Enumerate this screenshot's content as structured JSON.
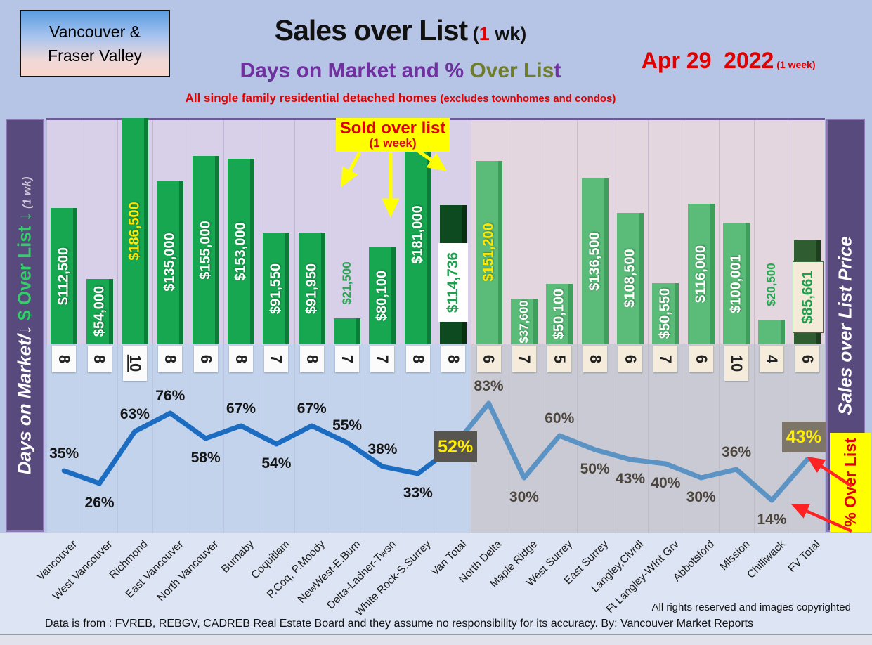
{
  "header": {
    "region_line1": "Vancouver &",
    "region_line2": "Fraser Valley",
    "title": "Sales over List",
    "title_paren_open": " (",
    "title_week_num": "1",
    "title_paren_close": " wk)",
    "subtitle_p1": "Days on Market and % ",
    "subtitle_green": "Over Lis",
    "subtitle_p2": "t",
    "tagline": "All single family residential detached homes ",
    "tagline_small": "(excludes townhomes and condos)",
    "date": "Apr 29  2022",
    "date_small": " (1 week)"
  },
  "sidebars": {
    "left_white": "Days on Market/",
    "left_arrow1": "↓",
    "left_green": " $ Over List ",
    "left_arrow2": "↓",
    "left_small": " (1 wk)",
    "right_label": "Sales over List Price",
    "pct_over_list": "% Over List"
  },
  "callout": {
    "line1": "Sold over list",
    "line2": "(1 week)"
  },
  "footer": {
    "rights": "All rights reserved and  images copyrighted",
    "source": "Data is from : FVREB, REBGV, CADREB Real Estate Board and they assume no responsibility for its accuracy. By: Vancouver Market Reports"
  },
  "chart_data": {
    "type": "bar+line",
    "title": "Sales over List (1 wk) - Days on Market and % Over List",
    "categories": [
      "Vancouver",
      "West Vancouver",
      "Richmond",
      "East Vancouver",
      "North Vancouver",
      "Burnaby",
      "Coquitlam",
      "P.Coq, P.Moody",
      "NewWest-E.Burn",
      "Delta-Ladner-Twsn",
      "White Rock-S.Surrey",
      "Van Total",
      "North Delta",
      "Maple Ridge",
      "West Surrey",
      "East Surrey",
      "Langley,Clvrdl",
      "Ft Langley-WInt Grv",
      "Abbotsford",
      "Mission",
      "Chilliwack",
      "FV Total"
    ],
    "series": [
      {
        "name": "Sold over list ($, 1 week)",
        "type": "bar",
        "values": [
          112500,
          54000,
          186500,
          135000,
          155000,
          153000,
          91550,
          91950,
          21500,
          80100,
          181000,
          114736,
          151200,
          37600,
          50100,
          136500,
          108500,
          50550,
          116000,
          100001,
          20500,
          85661
        ],
        "labels": [
          "$112,500",
          "$54,000",
          "$186,500",
          "$135,000",
          "$155,000",
          "$153,000",
          "$91,550",
          "$91,950",
          "$21,500",
          "$80,100",
          "$181,000",
          "$114,736",
          "$151,200",
          "$37,600",
          "$50,100",
          "$136,500",
          "$108,500",
          "$50,550",
          "$116,000",
          "$100,001",
          "$20,500",
          "$85,661"
        ],
        "label_style": [
          "white",
          "white",
          "yellow",
          "white",
          "white",
          "white",
          "white",
          "white",
          "green-above",
          "white",
          "white",
          "box-white",
          "yellow",
          "white-small",
          "white",
          "white",
          "white",
          "white",
          "white",
          "white",
          "green-above",
          "box-beige"
        ],
        "bar_style": [
          "van",
          "van",
          "van",
          "van",
          "van",
          "van",
          "van",
          "van",
          "van",
          "van",
          "van",
          "van-total",
          "fv",
          "fv",
          "fv",
          "fv",
          "fv",
          "fv",
          "fv",
          "fv",
          "fv",
          "fv-total"
        ]
      },
      {
        "name": "Days on Market",
        "type": "bar-callout-row",
        "values": [
          8,
          8,
          10,
          8,
          6,
          8,
          7,
          8,
          7,
          7,
          8,
          8,
          6,
          7,
          5,
          8,
          6,
          7,
          6,
          10,
          4,
          6
        ],
        "box_style": [
          "white",
          "white",
          "white",
          "white",
          "white",
          "white",
          "white",
          "white",
          "white",
          "white",
          "white",
          "white",
          "beige",
          "beige",
          "beige",
          "beige",
          "beige",
          "beige",
          "beige",
          "beige",
          "beige",
          "beige"
        ],
        "underline_index": 2
      },
      {
        "name": "% Over List",
        "type": "line",
        "values": [
          35,
          26,
          63,
          76,
          58,
          67,
          54,
          67,
          55,
          38,
          33,
          52,
          83,
          30,
          60,
          50,
          43,
          40,
          30,
          36,
          14,
          43
        ],
        "labels": [
          "35%",
          "26%",
          "63%",
          "76%",
          "58%",
          "67%",
          "54%",
          "67%",
          "55%",
          "38%",
          "33%",
          "52%",
          "83%",
          "30%",
          "60%",
          "50%",
          "43%",
          "40%",
          "30%",
          "36%",
          "14%",
          "43%"
        ],
        "label_pos": [
          "above",
          "below",
          "above",
          "above",
          "below",
          "above",
          "below",
          "above",
          "above",
          "above",
          "below",
          "box-dark",
          "above",
          "below",
          "above",
          "below",
          "below",
          "below",
          "below",
          "above",
          "below",
          "box-brown"
        ]
      }
    ],
    "van_region_count": 12,
    "ylim_bar": [
      0,
      190000
    ],
    "ylim_pct": [
      0,
      100
    ],
    "legend_position": "none",
    "grid": "vertical-faint"
  },
  "colors": {
    "header_bg": "#b6c4e5",
    "van_bar": "#17a750",
    "van_bar_edge": "#0d7c39",
    "fv_bar": "#5abc78",
    "fv_bar_edge": "#3f9e5c",
    "van_total_bar": "#0e4a20",
    "van_total_edge": "#07300f",
    "fv_total_bar": "#2f5d31",
    "fv_total_edge": "#1d3f1e",
    "line_van": "#1c6dc1",
    "line_fv": "#5b93c4",
    "accent_red": "#e00000",
    "yellow": "#ffff00",
    "purple_bar": "#584a7d",
    "band_bar_van": "#d8d0e8",
    "band_bar_fv": "#e4d6de",
    "band_line_van": "#c3d3ec",
    "band_line_fv": "#c9cad4",
    "green_text": "#2aa653"
  }
}
